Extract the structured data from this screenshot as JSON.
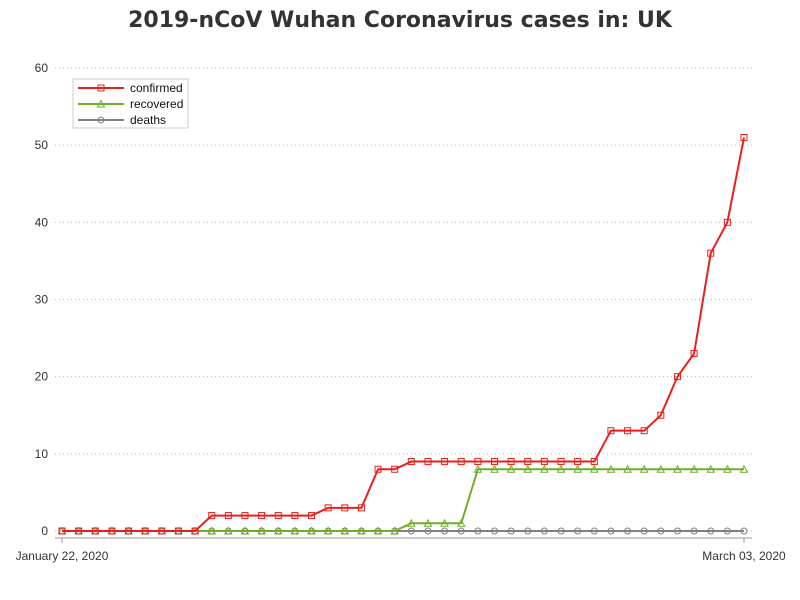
{
  "chart_data": {
    "type": "line",
    "title": "2019-nCoV Wuhan Coronavirus cases in: UK",
    "xlabel": "",
    "ylabel": "",
    "x_tick_labels": [
      "January 22, 2020",
      "March 03, 2020"
    ],
    "x": [
      "2020-01-22",
      "2020-01-23",
      "2020-01-24",
      "2020-01-25",
      "2020-01-26",
      "2020-01-27",
      "2020-01-28",
      "2020-01-29",
      "2020-01-30",
      "2020-01-31",
      "2020-02-01",
      "2020-02-02",
      "2020-02-03",
      "2020-02-04",
      "2020-02-05",
      "2020-02-06",
      "2020-02-07",
      "2020-02-08",
      "2020-02-09",
      "2020-02-10",
      "2020-02-11",
      "2020-02-12",
      "2020-02-13",
      "2020-02-14",
      "2020-02-15",
      "2020-02-16",
      "2020-02-17",
      "2020-02-18",
      "2020-02-19",
      "2020-02-20",
      "2020-02-21",
      "2020-02-22",
      "2020-02-23",
      "2020-02-24",
      "2020-02-25",
      "2020-02-26",
      "2020-02-27",
      "2020-02-28",
      "2020-02-29",
      "2020-03-01",
      "2020-03-02",
      "2020-03-03"
    ],
    "ylim": [
      0,
      60
    ],
    "y_ticks": [
      0,
      10,
      20,
      30,
      40,
      50,
      60
    ],
    "grid": true,
    "legend_position": "top-left",
    "series": [
      {
        "name": "confirmed",
        "color": "#e8201c",
        "marker": "square",
        "values": [
          0,
          0,
          0,
          0,
          0,
          0,
          0,
          0,
          0,
          2,
          2,
          2,
          2,
          2,
          2,
          2,
          3,
          3,
          3,
          8,
          8,
          9,
          9,
          9,
          9,
          9,
          9,
          9,
          9,
          9,
          9,
          9,
          9,
          13,
          13,
          13,
          15,
          20,
          23,
          36,
          40,
          51
        ]
      },
      {
        "name": "recovered",
        "color": "#6fae2a",
        "marker": "triangle",
        "values": [
          0,
          0,
          0,
          0,
          0,
          0,
          0,
          0,
          0,
          0,
          0,
          0,
          0,
          0,
          0,
          0,
          0,
          0,
          0,
          0,
          0,
          1,
          1,
          1,
          1,
          8,
          8,
          8,
          8,
          8,
          8,
          8,
          8,
          8,
          8,
          8,
          8,
          8,
          8,
          8,
          8,
          8
        ]
      },
      {
        "name": "deaths",
        "color": "#808080",
        "marker": "circle",
        "values": [
          0,
          0,
          0,
          0,
          0,
          0,
          0,
          0,
          0,
          0,
          0,
          0,
          0,
          0,
          0,
          0,
          0,
          0,
          0,
          0,
          0,
          0,
          0,
          0,
          0,
          0,
          0,
          0,
          0,
          0,
          0,
          0,
          0,
          0,
          0,
          0,
          0,
          0,
          0,
          0,
          0,
          0
        ]
      }
    ]
  }
}
